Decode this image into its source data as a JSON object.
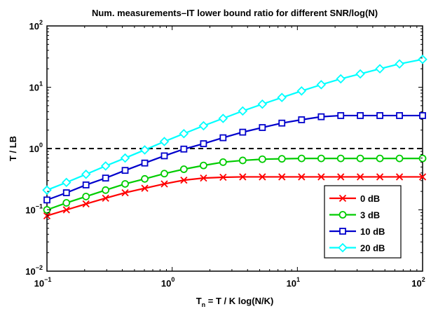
{
  "chart_data": {
    "type": "line",
    "title": "Num. measurements–IT lower bound ratio for different SNR/log(N)",
    "xlabel": "T_n = T / K log(N/K)",
    "xlabel_parts": {
      "main": "T",
      "sub": "n",
      "rest": " = T / K log(N/K)"
    },
    "ylabel": "T / LB",
    "xscale": "log",
    "yscale": "log",
    "xlim": [
      0.1,
      100
    ],
    "ylim": [
      0.01,
      100
    ],
    "grid": false,
    "legend_position": "lower-right",
    "x_ticks": [
      {
        "value": 0.1,
        "base": "10",
        "exp": "−1"
      },
      {
        "value": 1,
        "base": "10",
        "exp": "0"
      },
      {
        "value": 10,
        "base": "10",
        "exp": "1"
      },
      {
        "value": 100,
        "base": "10",
        "exp": "2"
      }
    ],
    "y_ticks": [
      {
        "value": 0.01,
        "base": "10",
        "exp": "−2"
      },
      {
        "value": 0.1,
        "base": "10",
        "exp": "−1"
      },
      {
        "value": 1,
        "base": "10",
        "exp": "0"
      },
      {
        "value": 10,
        "base": "10",
        "exp": "1"
      },
      {
        "value": 100,
        "base": "10",
        "exp": "2"
      }
    ],
    "reference_line": {
      "y": 1,
      "style": "dashed",
      "color": "#000000"
    },
    "x": [
      0.1,
      0.143,
      0.205,
      0.294,
      0.421,
      0.604,
      0.866,
      1.24,
      1.78,
      2.55,
      3.66,
      5.25,
      7.52,
      10.8,
      15.5,
      22.2,
      31.8,
      45.6,
      65.4,
      100
    ],
    "series": [
      {
        "name": "0 dB",
        "color": "#ff0000",
        "marker": "x",
        "values": [
          0.08,
          0.1,
          0.125,
          0.155,
          0.19,
          0.225,
          0.265,
          0.305,
          0.33,
          0.34,
          0.345,
          0.345,
          0.345,
          0.345,
          0.345,
          0.345,
          0.345,
          0.345,
          0.345,
          0.345
        ]
      },
      {
        "name": "3 dB",
        "color": "#00cc00",
        "marker": "circle",
        "values": [
          0.1,
          0.13,
          0.165,
          0.21,
          0.265,
          0.32,
          0.39,
          0.46,
          0.53,
          0.6,
          0.64,
          0.67,
          0.68,
          0.69,
          0.69,
          0.69,
          0.69,
          0.69,
          0.69,
          0.69
        ]
      },
      {
        "name": "10 dB",
        "color": "#0000cc",
        "marker": "square",
        "values": [
          0.145,
          0.19,
          0.255,
          0.33,
          0.44,
          0.58,
          0.76,
          0.98,
          1.2,
          1.5,
          1.85,
          2.2,
          2.6,
          2.95,
          3.3,
          3.45,
          3.45,
          3.45,
          3.45,
          3.45
        ]
      },
      {
        "name": "20 dB",
        "color": "#00ffff",
        "marker": "diamond",
        "values": [
          0.21,
          0.28,
          0.38,
          0.52,
          0.7,
          0.95,
          1.3,
          1.75,
          2.35,
          3.1,
          4.1,
          5.3,
          6.8,
          8.7,
          11,
          13.7,
          16.5,
          20,
          24,
          28.5
        ]
      }
    ]
  }
}
